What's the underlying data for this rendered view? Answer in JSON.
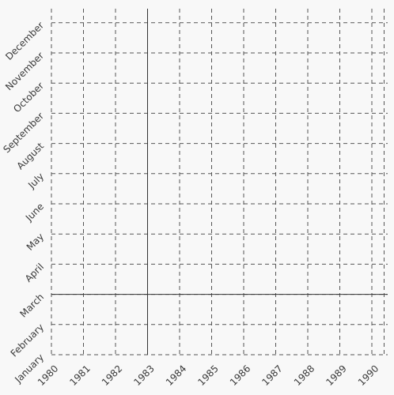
{
  "chart_data": {
    "type": "scatter",
    "title": "",
    "xlabel": "",
    "ylabel": "",
    "x_ticks": [
      "1980",
      "1981",
      "1982",
      "1983",
      "1984",
      "1985",
      "1986",
      "1987",
      "1988",
      "1989",
      "1990"
    ],
    "y_ticks": [
      "January",
      "February",
      "March",
      "April",
      "May",
      "June",
      "July",
      "August",
      "September",
      "October",
      "November",
      "December"
    ],
    "xlim": [
      1980,
      1990
    ],
    "ylim": [
      "January",
      "December"
    ],
    "crosshair": {
      "x": "1983",
      "y": "March"
    },
    "series": [],
    "grid": true,
    "grid_style": "dashed",
    "colors": {
      "background": "#f8f8f8",
      "grid": "#555555",
      "crosshair": "#333333",
      "text": "#3a3a3a"
    }
  }
}
